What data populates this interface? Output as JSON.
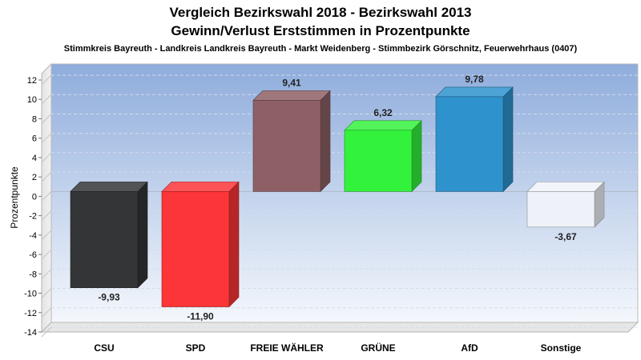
{
  "chart_data": {
    "type": "bar",
    "title_line1": "Vergleich Bezirkswahl 2018 - Bezirkswahl 2013",
    "title_line2": "Gewinn/Verlust Erststimmen in Prozentpunkte",
    "subtitle": "Stimmkreis Bayreuth - Landkreis Landkreis Bayreuth - Markt Weidenberg - Stimmbezirk Görschnitz, Feuerwehrhaus (0407)",
    "ylabel": "Prozentpunkte",
    "ylim": [
      -14,
      12
    ],
    "yticks": [
      12,
      10,
      8,
      6,
      4,
      2,
      0,
      -2,
      -4,
      -6,
      -8,
      -10,
      -12,
      -14
    ],
    "grid": true,
    "categories": [
      "CSU",
      "SPD",
      "FREIE WÄHLER",
      "GRÜNE",
      "AfD",
      "Sonstige"
    ],
    "values": [
      -9.93,
      -11.9,
      9.41,
      6.32,
      9.78,
      -3.67
    ],
    "value_labels": [
      "-9,93",
      "-11,90",
      "9,41",
      "6,32",
      "9,78",
      "-3,67"
    ],
    "colors": [
      "#333537",
      "#fb3538",
      "#8e6065",
      "#33f23c",
      "#2e93cd",
      "#eef2f8"
    ]
  }
}
